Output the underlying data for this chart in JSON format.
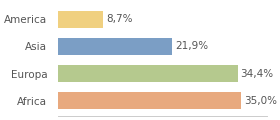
{
  "categories": [
    "America",
    "Asia",
    "Europa",
    "Africa"
  ],
  "values": [
    8.7,
    21.9,
    34.4,
    35.0
  ],
  "labels": [
    "8,7%",
    "21,9%",
    "34,4%",
    "35,0%"
  ],
  "colors": [
    "#f0d080",
    "#7b9ec5",
    "#b5c98e",
    "#e8a97e"
  ],
  "xlim": [
    0,
    40
  ],
  "background_color": "#ffffff",
  "bar_height": 0.62,
  "label_fontsize": 7.5,
  "tick_fontsize": 7.5
}
